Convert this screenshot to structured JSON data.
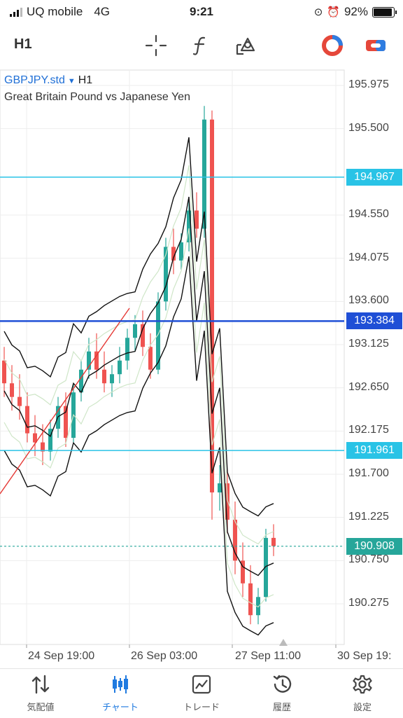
{
  "status": {
    "carrier": "UQ mobile",
    "network": "4G",
    "time": "9:21",
    "battery": "92%",
    "battery_level": 0.92
  },
  "toolbar": {
    "timeframe": "H1",
    "tools": [
      "crosshair-icon",
      "indicators-icon",
      "objects-icon",
      "trade-signal-icon",
      "toggle-icon"
    ]
  },
  "chart": {
    "symbol": "GBPJPY.std",
    "timeframe": "H1",
    "description": "Great Britain Pound vs Japanese Yen",
    "price_axis": [
      "195.975",
      "195.500",
      "194.550",
      "194.075",
      "193.600",
      "193.125",
      "192.650",
      "192.175",
      "191.700",
      "191.225",
      "190.750",
      "190.275"
    ],
    "lines": [
      {
        "price": 194.967,
        "label": "194.967",
        "color": "#29c3e6"
      },
      {
        "price": 193.384,
        "label": "193.384",
        "color": "#1f4fd6"
      },
      {
        "price": 191.961,
        "label": "191.961",
        "color": "#29c3e6"
      }
    ],
    "current_price": {
      "price": 190.908,
      "label": "190.908",
      "color": "#26a69a"
    },
    "time_axis": [
      "24 Sep 19:00",
      "26 Sep 03:00",
      "27 Sep 11:00",
      "30 Sep 19:"
    ]
  },
  "chart_data": {
    "type": "candlestick",
    "title": "GBPJPY.std H1",
    "ylim": [
      189.9,
      196.2
    ],
    "x_ticks": [
      "24 Sep 19:00",
      "26 Sep 03:00",
      "27 Sep 11:00",
      "30 Sep 19:"
    ],
    "candles": [
      {
        "o": 192.95,
        "h": 193.1,
        "l": 192.55,
        "c": 192.7
      },
      {
        "o": 192.7,
        "h": 192.9,
        "l": 192.4,
        "c": 192.55
      },
      {
        "o": 192.55,
        "h": 192.8,
        "l": 192.3,
        "c": 192.45
      },
      {
        "o": 192.45,
        "h": 192.6,
        "l": 192.05,
        "c": 192.15
      },
      {
        "o": 192.15,
        "h": 192.35,
        "l": 191.9,
        "c": 192.05
      },
      {
        "o": 192.05,
        "h": 192.25,
        "l": 191.8,
        "c": 191.95
      },
      {
        "o": 191.95,
        "h": 192.3,
        "l": 191.85,
        "c": 192.2
      },
      {
        "o": 192.2,
        "h": 192.55,
        "l": 192.1,
        "c": 192.45
      },
      {
        "o": 192.45,
        "h": 192.6,
        "l": 192.0,
        "c": 192.1
      },
      {
        "o": 192.1,
        "h": 192.7,
        "l": 192.05,
        "c": 192.6
      },
      {
        "o": 192.6,
        "h": 192.95,
        "l": 192.5,
        "c": 192.85
      },
      {
        "o": 192.85,
        "h": 193.2,
        "l": 192.75,
        "c": 193.05
      },
      {
        "o": 193.05,
        "h": 193.25,
        "l": 192.75,
        "c": 192.85
      },
      {
        "o": 192.85,
        "h": 193.05,
        "l": 192.6,
        "c": 192.7
      },
      {
        "o": 192.7,
        "h": 192.9,
        "l": 192.55,
        "c": 192.8
      },
      {
        "o": 192.8,
        "h": 193.1,
        "l": 192.7,
        "c": 192.95
      },
      {
        "o": 192.95,
        "h": 193.3,
        "l": 192.85,
        "c": 193.2
      },
      {
        "o": 193.2,
        "h": 193.45,
        "l": 193.05,
        "c": 193.35
      },
      {
        "o": 193.35,
        "h": 193.5,
        "l": 193.0,
        "c": 193.1
      },
      {
        "o": 193.1,
        "h": 193.25,
        "l": 192.75,
        "c": 192.85
      },
      {
        "o": 192.85,
        "h": 193.7,
        "l": 192.8,
        "c": 193.6
      },
      {
        "o": 193.6,
        "h": 194.3,
        "l": 193.5,
        "c": 194.2
      },
      {
        "o": 194.2,
        "h": 194.4,
        "l": 193.9,
        "c": 194.05
      },
      {
        "o": 194.05,
        "h": 194.35,
        "l": 193.95,
        "c": 194.25
      },
      {
        "o": 194.25,
        "h": 194.7,
        "l": 194.15,
        "c": 194.6
      },
      {
        "o": 194.6,
        "h": 194.8,
        "l": 194.3,
        "c": 194.4
      },
      {
        "o": 194.4,
        "h": 195.75,
        "l": 194.3,
        "c": 195.6
      },
      {
        "o": 195.6,
        "h": 195.7,
        "l": 191.2,
        "c": 191.5
      },
      {
        "o": 191.5,
        "h": 191.8,
        "l": 191.3,
        "c": 191.6
      },
      {
        "o": 191.6,
        "h": 191.75,
        "l": 191.05,
        "c": 191.2
      },
      {
        "o": 191.2,
        "h": 191.4,
        "l": 190.6,
        "c": 190.75
      },
      {
        "o": 190.75,
        "h": 190.95,
        "l": 190.35,
        "c": 190.5
      },
      {
        "o": 190.5,
        "h": 190.7,
        "l": 190.05,
        "c": 190.15
      },
      {
        "o": 190.15,
        "h": 190.45,
        "l": 190.05,
        "c": 190.35
      },
      {
        "o": 190.35,
        "h": 191.1,
        "l": 190.3,
        "c": 191.0
      },
      {
        "o": 191.0,
        "h": 191.15,
        "l": 190.8,
        "c": 190.91
      }
    ]
  },
  "nav": [
    {
      "label": "気配値",
      "icon": "quotes-icon",
      "active": false
    },
    {
      "label": "チャート",
      "icon": "chart-icon",
      "active": true
    },
    {
      "label": "トレード",
      "icon": "trade-icon",
      "active": false
    },
    {
      "label": "履歴",
      "icon": "history-icon",
      "active": false
    },
    {
      "label": "設定",
      "icon": "settings-icon",
      "active": false
    }
  ]
}
